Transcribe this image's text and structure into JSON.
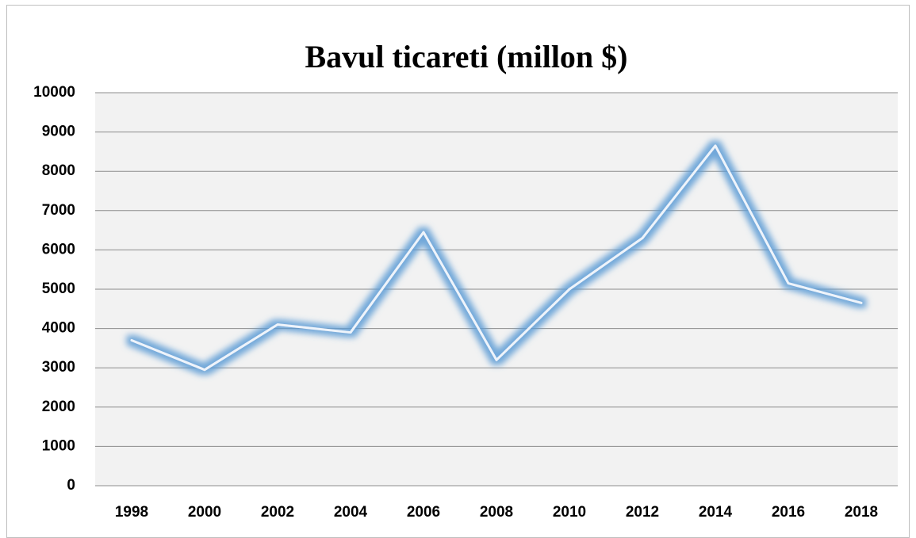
{
  "chart_data": {
    "type": "line",
    "title": "Bavul ticareti (millon $)",
    "categories": [
      "1998",
      "2000",
      "2002",
      "2004",
      "2006",
      "2008",
      "2010",
      "2012",
      "2014",
      "2016",
      "2018"
    ],
    "series": [
      {
        "name": "Bavul ticareti",
        "color": "#eef4fb",
        "glow_color": "#5b9bd5",
        "values": [
          3700,
          2950,
          4100,
          3900,
          6450,
          3200,
          5000,
          6300,
          8650,
          5150,
          4650
        ]
      }
    ],
    "ylim": [
      0,
      10000
    ],
    "yticks": [
      0,
      1000,
      2000,
      3000,
      4000,
      5000,
      6000,
      7000,
      8000,
      9000,
      10000
    ],
    "grid": true,
    "legend": false
  }
}
